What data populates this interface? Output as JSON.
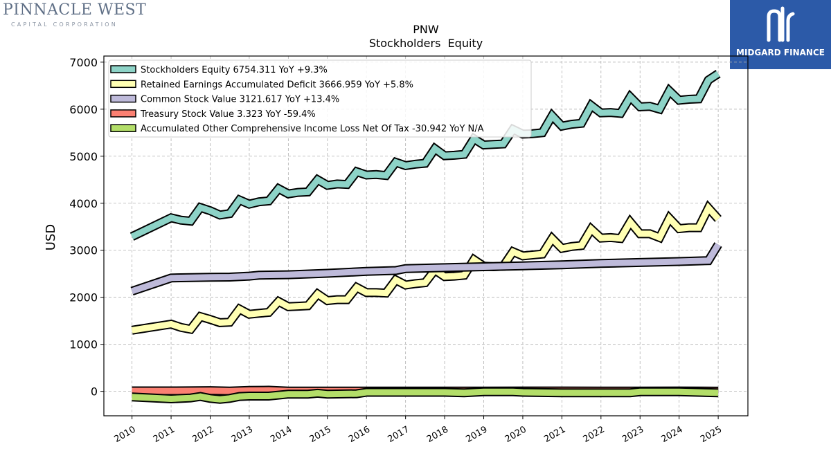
{
  "branding": {
    "left_logo_main": "PINNACLE WEST",
    "left_logo_sub": "CAPITAL CORPORATION",
    "right_logo_text": "MIDGARD FINANCE",
    "right_logo_color": "#2c5aa8"
  },
  "chart_data": {
    "type": "area",
    "title": "PNW",
    "subtitle": "Stockholders  Equity",
    "xlabel": "",
    "ylabel": "USD",
    "xlim": [
      2009.28,
      2025.76
    ],
    "ylim": [
      -520,
      7130
    ],
    "x_ticks": [
      "2010",
      "2011",
      "2012",
      "2013",
      "2014",
      "2015",
      "2016",
      "2017",
      "2018",
      "2019",
      "2020",
      "2021",
      "2022",
      "2023",
      "2024",
      "2025"
    ],
    "y_ticks": [
      0,
      1000,
      2000,
      3000,
      4000,
      5000,
      6000,
      7000
    ],
    "grid": true,
    "legend_position": "top-left",
    "series": [
      {
        "name": "Stockholders Equity  6754.311 YoY +9.3%",
        "color": "#8dd3c7",
        "points": [
          [
            2010.0,
            3290
          ],
          [
            2011.0,
            3690
          ],
          [
            2011.25,
            3640
          ],
          [
            2011.5,
            3620
          ],
          [
            2011.75,
            3910
          ],
          [
            2012.0,
            3840
          ],
          [
            2012.25,
            3750
          ],
          [
            2012.5,
            3780
          ],
          [
            2012.75,
            4070
          ],
          [
            2013.0,
            3980
          ],
          [
            2013.25,
            4030
          ],
          [
            2013.5,
            4050
          ],
          [
            2013.75,
            4310
          ],
          [
            2014.0,
            4200
          ],
          [
            2014.25,
            4230
          ],
          [
            2014.5,
            4240
          ],
          [
            2014.75,
            4500
          ],
          [
            2015.0,
            4380
          ],
          [
            2015.25,
            4410
          ],
          [
            2015.5,
            4400
          ],
          [
            2015.75,
            4670
          ],
          [
            2016.0,
            4600
          ],
          [
            2016.25,
            4610
          ],
          [
            2016.5,
            4590
          ],
          [
            2016.75,
            4870
          ],
          [
            2017.0,
            4800
          ],
          [
            2017.25,
            4830
          ],
          [
            2017.5,
            4850
          ],
          [
            2017.75,
            5160
          ],
          [
            2018.0,
            5010
          ],
          [
            2018.25,
            5020
          ],
          [
            2018.5,
            5040
          ],
          [
            2018.75,
            5370
          ],
          [
            2019.0,
            5240
          ],
          [
            2019.25,
            5250
          ],
          [
            2019.5,
            5260
          ],
          [
            2019.75,
            5570
          ],
          [
            2020.0,
            5470
          ],
          [
            2020.25,
            5480
          ],
          [
            2020.5,
            5500
          ],
          [
            2020.75,
            5860
          ],
          [
            2021.0,
            5640
          ],
          [
            2021.25,
            5680
          ],
          [
            2021.5,
            5700
          ],
          [
            2021.75,
            6080
          ],
          [
            2022.0,
            5920
          ],
          [
            2022.25,
            5930
          ],
          [
            2022.5,
            5910
          ],
          [
            2022.75,
            6260
          ],
          [
            2023.0,
            6050
          ],
          [
            2023.25,
            6060
          ],
          [
            2023.5,
            6000
          ],
          [
            2023.75,
            6390
          ],
          [
            2024.0,
            6190
          ],
          [
            2024.25,
            6210
          ],
          [
            2024.5,
            6220
          ],
          [
            2024.75,
            6620
          ],
          [
            2025.0,
            6754.311
          ]
        ]
      },
      {
        "name": "Retained Earnings Accumulated Deficit  3666.959 YoY +5.8%",
        "color": "#ffffb3",
        "points": [
          [
            2010.0,
            1300
          ],
          [
            2011.0,
            1430
          ],
          [
            2011.25,
            1360
          ],
          [
            2011.5,
            1320
          ],
          [
            2011.75,
            1590
          ],
          [
            2012.0,
            1530
          ],
          [
            2012.25,
            1460
          ],
          [
            2012.5,
            1470
          ],
          [
            2012.75,
            1750
          ],
          [
            2013.0,
            1640
          ],
          [
            2013.25,
            1660
          ],
          [
            2013.5,
            1680
          ],
          [
            2013.75,
            1910
          ],
          [
            2014.0,
            1800
          ],
          [
            2014.25,
            1810
          ],
          [
            2014.5,
            1820
          ],
          [
            2014.75,
            2070
          ],
          [
            2015.0,
            1930
          ],
          [
            2015.25,
            1950
          ],
          [
            2015.5,
            1950
          ],
          [
            2015.75,
            2210
          ],
          [
            2016.0,
            2100
          ],
          [
            2016.25,
            2100
          ],
          [
            2016.5,
            2090
          ],
          [
            2016.75,
            2370
          ],
          [
            2017.0,
            2260
          ],
          [
            2017.25,
            2290
          ],
          [
            2017.5,
            2310
          ],
          [
            2017.75,
            2580
          ],
          [
            2018.0,
            2440
          ],
          [
            2018.25,
            2450
          ],
          [
            2018.5,
            2470
          ],
          [
            2018.75,
            2800
          ],
          [
            2019.0,
            2660
          ],
          [
            2019.25,
            2650
          ],
          [
            2019.5,
            2660
          ],
          [
            2019.75,
            2970
          ],
          [
            2020.0,
            2880
          ],
          [
            2020.25,
            2900
          ],
          [
            2020.5,
            2920
          ],
          [
            2020.75,
            3250
          ],
          [
            2021.0,
            3040
          ],
          [
            2021.25,
            3080
          ],
          [
            2021.5,
            3100
          ],
          [
            2021.75,
            3450
          ],
          [
            2022.0,
            3260
          ],
          [
            2022.25,
            3270
          ],
          [
            2022.5,
            3250
          ],
          [
            2022.75,
            3600
          ],
          [
            2023.0,
            3350
          ],
          [
            2023.25,
            3350
          ],
          [
            2023.5,
            3270
          ],
          [
            2023.75,
            3680
          ],
          [
            2024.0,
            3460
          ],
          [
            2024.25,
            3480
          ],
          [
            2024.5,
            3480
          ],
          [
            2024.75,
            3900
          ],
          [
            2025.0,
            3666.959
          ]
        ]
      },
      {
        "name": "Common Stock Value  3121.617 YoY +13.4%",
        "color": "#bebada",
        "points": [
          [
            2010.0,
            2130
          ],
          [
            2011.0,
            2410
          ],
          [
            2011.5,
            2420
          ],
          [
            2012.0,
            2425
          ],
          [
            2012.5,
            2430
          ],
          [
            2013.0,
            2450
          ],
          [
            2013.25,
            2470
          ],
          [
            2014.0,
            2480
          ],
          [
            2015.0,
            2510
          ],
          [
            2016.0,
            2550
          ],
          [
            2016.75,
            2570
          ],
          [
            2017.0,
            2610
          ],
          [
            2018.0,
            2630
          ],
          [
            2019.0,
            2650
          ],
          [
            2020.0,
            2670
          ],
          [
            2021.0,
            2690
          ],
          [
            2022.0,
            2720
          ],
          [
            2023.0,
            2740
          ],
          [
            2024.0,
            2760
          ],
          [
            2024.75,
            2780
          ],
          [
            2025.0,
            3121.617
          ]
        ]
      },
      {
        "name": "Treasury Stock Value  3.323 YoY -59.4%",
        "color": "#fb8072",
        "points": [
          [
            2010.0,
            10
          ],
          [
            2011.0,
            10
          ],
          [
            2012.0,
            15
          ],
          [
            2012.5,
            5
          ],
          [
            2013.0,
            20
          ],
          [
            2013.5,
            25
          ],
          [
            2014.0,
            5
          ],
          [
            2015.0,
            5
          ],
          [
            2016.0,
            5
          ],
          [
            2017.0,
            5
          ],
          [
            2018.0,
            5
          ],
          [
            2019.0,
            5
          ],
          [
            2020.0,
            8
          ],
          [
            2021.0,
            8
          ],
          [
            2022.0,
            5
          ],
          [
            2023.0,
            5
          ],
          [
            2024.0,
            8
          ],
          [
            2025.0,
            3.323
          ]
        ]
      },
      {
        "name": "Accumulated Other Comprehensive Income Loss Net Of Tax  -30.942 YoY N/A",
        "color": "#b3de69",
        "points": [
          [
            2010.0,
            -120
          ],
          [
            2011.0,
            -160
          ],
          [
            2011.5,
            -140
          ],
          [
            2011.75,
            -110
          ],
          [
            2012.0,
            -150
          ],
          [
            2012.25,
            -170
          ],
          [
            2012.5,
            -150
          ],
          [
            2012.75,
            -110
          ],
          [
            2013.0,
            -100
          ],
          [
            2013.5,
            -100
          ],
          [
            2014.0,
            -60
          ],
          [
            2014.5,
            -60
          ],
          [
            2014.75,
            -40
          ],
          [
            2015.0,
            -60
          ],
          [
            2015.75,
            -50
          ],
          [
            2016.0,
            -20
          ],
          [
            2017.0,
            -20
          ],
          [
            2018.0,
            -20
          ],
          [
            2018.5,
            -30
          ],
          [
            2019.0,
            -10
          ],
          [
            2019.75,
            -10
          ],
          [
            2020.0,
            -20
          ],
          [
            2021.0,
            -30
          ],
          [
            2021.75,
            -30
          ],
          [
            2022.0,
            -30
          ],
          [
            2022.75,
            -30
          ],
          [
            2023.0,
            -10
          ],
          [
            2024.0,
            -10
          ],
          [
            2025.0,
            -30.942
          ]
        ]
      }
    ]
  }
}
